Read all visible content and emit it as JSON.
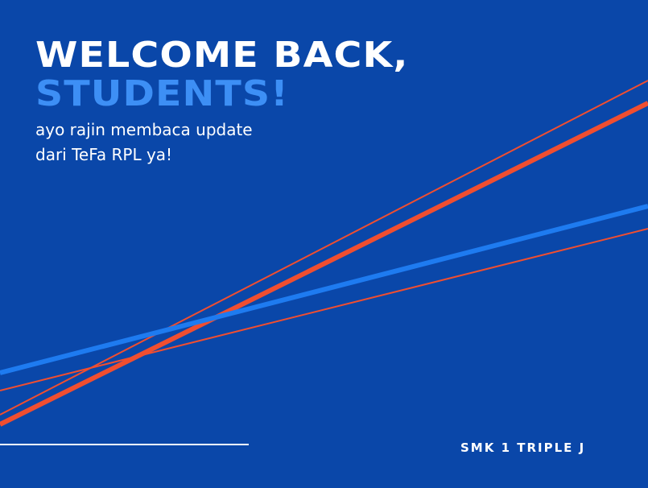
{
  "banner": {
    "headline_line1": "WELCOME BACK,",
    "headline_line2": "STUDENTS!",
    "subtitle_line1": "ayo rajin membaca update",
    "subtitle_line2": "dari TeFa RPL ya!",
    "footer_text": "SMK 1 TRIPLE J"
  },
  "colors": {
    "background": "#0A47A9",
    "headline_primary": "#FFFFFF",
    "headline_accent": "#3D8FF5",
    "stripe_orange": "#F04E30",
    "stripe_blue": "#1E7BF0"
  }
}
